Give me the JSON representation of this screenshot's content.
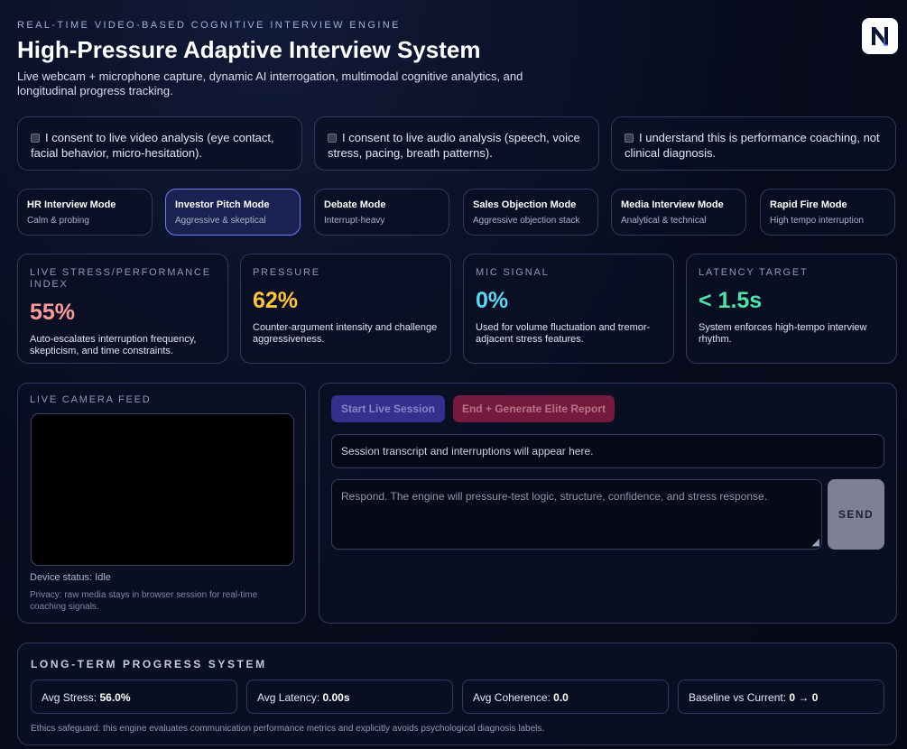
{
  "header": {
    "eyebrow": "REAL-TIME VIDEO-BASED COGNITIVE INTERVIEW ENGINE",
    "title": "High-Pressure Adaptive Interview System",
    "subtitle": "Live webcam + microphone capture, dynamic AI interrogation, multimodal cognitive analytics, and longitudinal progress tracking.",
    "logo_letter": "N"
  },
  "consents": [
    {
      "label": "I consent to live video analysis (eye contact, facial behavior, micro-hesitation).",
      "checked": false
    },
    {
      "label": "I consent to live audio analysis (speech, voice stress, pacing, breath patterns).",
      "checked": false
    },
    {
      "label": "I understand this is performance coaching, not clinical diagnosis.",
      "checked": false
    }
  ],
  "modes": [
    {
      "title": "HR Interview Mode",
      "sub": "Calm & probing"
    },
    {
      "title": "Investor Pitch Mode",
      "sub": "Aggressive & skeptical"
    },
    {
      "title": "Debate Mode",
      "sub": "Interrupt-heavy"
    },
    {
      "title": "Sales Objection Mode",
      "sub": "Aggressive objection stack"
    },
    {
      "title": "Media Interview Mode",
      "sub": "Analytical & technical"
    },
    {
      "title": "Rapid Fire Mode",
      "sub": "High tempo interruption"
    }
  ],
  "active_mode": "Investor Pitch Mode",
  "metrics": [
    {
      "label": "LIVE STRESS/PERFORMANCE INDEX",
      "value": "55%",
      "color": "#ff9a9a",
      "desc": "Auto-escalates interruption frequency, skepticism, and time constraints."
    },
    {
      "label": "PRESSURE",
      "value": "62%",
      "color": "#ffc53d",
      "desc": "Counter-argument intensity and challenge aggressiveness."
    },
    {
      "label": "MIC SIGNAL",
      "value": "0%",
      "color": "#5fd6f0",
      "desc": "Used for volume fluctuation and tremor-adjacent stress features."
    },
    {
      "label": "LATENCY TARGET",
      "value": "< 1.5s",
      "color": "#4ee3a6",
      "desc": "System enforces high-tempo interview rhythm."
    }
  ],
  "camera": {
    "label": "LIVE CAMERA FEED",
    "device_status": "Device status: Idle",
    "privacy": "Privacy: raw media stays in browser session for real-time coaching signals."
  },
  "session": {
    "start_label": "Start Live Session",
    "end_label": "End + Generate Elite Report",
    "transcript_text": "Session transcript and interruptions will appear here.",
    "respond_placeholder": "Respond. The engine will pressure-test logic, structure, confidence, and stress response.",
    "send_label": "SEND"
  },
  "progress": {
    "title": "LONG-TERM PROGRESS SYSTEM",
    "stats": [
      {
        "label": "Avg Stress: ",
        "value": "56.0%"
      },
      {
        "label": "Avg Latency: ",
        "value": "0.00s"
      },
      {
        "label": "Avg Coherence: ",
        "value": "0.0"
      },
      {
        "label": "Baseline vs Current: ",
        "value": "0 → 0"
      }
    ],
    "ethics": "Ethics safeguard: this engine evaluates communication performance metrics and explicitly avoids psychological diagnosis labels."
  }
}
